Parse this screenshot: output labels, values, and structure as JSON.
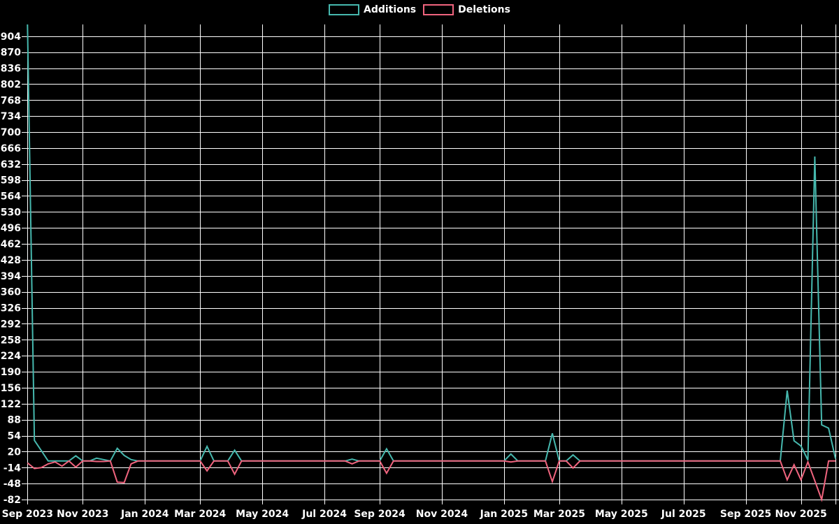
{
  "chart_data": {
    "type": "line",
    "title": "",
    "x_axis": {
      "kind": "time-weekly",
      "start_label": "Sep 2023",
      "end_label": "Nov 2025",
      "weeks_total": 118,
      "ticks": [
        {
          "label": "Sep 2023",
          "week": 0
        },
        {
          "label": "Nov 2023",
          "week": 8
        },
        {
          "label": "Jan 2024",
          "week": 17
        },
        {
          "label": "Mar 2024",
          "week": 25
        },
        {
          "label": "May 2024",
          "week": 34
        },
        {
          "label": "Jul 2024",
          "week": 43
        },
        {
          "label": "Sep 2024",
          "week": 51
        },
        {
          "label": "Nov 2024",
          "week": 60
        },
        {
          "label": "Jan 2025",
          "week": 69
        },
        {
          "label": "Mar 2025",
          "week": 77
        },
        {
          "label": "May 2025",
          "week": 86
        },
        {
          "label": "Jul 2025",
          "week": 95
        },
        {
          "label": "Sep 2025",
          "week": 104
        },
        {
          "label": "Nov 2025",
          "week": 112
        }
      ]
    },
    "y_axis": {
      "min": -82,
      "max": 929,
      "tick_step": 34,
      "ticks": [
        904,
        870,
        836,
        802,
        768,
        734,
        700,
        666,
        632,
        598,
        564,
        530,
        496,
        462,
        428,
        394,
        360,
        326,
        292,
        258,
        224,
        190,
        156,
        122,
        88,
        54,
        20,
        -14,
        -48,
        -82
      ]
    },
    "grid": true,
    "background_color": "#000000",
    "grid_color": "#ffffff",
    "text_color": "#ffffff",
    "legend_position": "top-center",
    "legend": [
      {
        "label": "Additions",
        "color": "#46b8ae"
      },
      {
        "label": "Deletions",
        "color": "#f0647e"
      }
    ],
    "series": [
      {
        "name": "Additions",
        "color": "#46b8ae",
        "values": [
          929,
          44,
          22,
          0,
          0,
          0,
          0,
          11,
          0,
          0,
          6,
          3,
          0,
          27,
          12,
          3,
          0,
          0,
          0,
          0,
          0,
          0,
          0,
          0,
          0,
          0,
          31,
          0,
          0,
          0,
          23,
          0,
          0,
          0,
          0,
          0,
          0,
          0,
          0,
          0,
          0,
          0,
          0,
          0,
          0,
          0,
          0,
          4,
          0,
          0,
          0,
          0,
          26,
          0,
          0,
          0,
          0,
          0,
          0,
          0,
          0,
          0,
          0,
          0,
          0,
          0,
          0,
          0,
          0,
          0,
          15,
          0,
          0,
          0,
          0,
          0,
          59,
          0,
          0,
          13,
          0,
          0,
          0,
          0,
          0,
          0,
          0,
          0,
          0,
          0,
          0,
          0,
          0,
          0,
          0,
          0,
          0,
          0,
          0,
          0,
          0,
          0,
          0,
          0,
          0,
          0,
          0,
          0,
          0,
          0,
          150,
          43,
          32,
          2,
          648,
          77,
          70,
          5
        ]
      },
      {
        "name": "Deletions",
        "color": "#f0647e",
        "values": [
          -4,
          -16,
          -14,
          -6,
          -2,
          -11,
          0,
          -13,
          0,
          0,
          -1,
          -1,
          0,
          -45,
          -46,
          -6,
          0,
          0,
          0,
          0,
          0,
          0,
          0,
          0,
          0,
          0,
          -21,
          0,
          0,
          0,
          -28,
          0,
          0,
          0,
          0,
          0,
          0,
          0,
          0,
          0,
          0,
          0,
          0,
          0,
          0,
          0,
          0,
          -6,
          0,
          0,
          0,
          0,
          -26,
          0,
          0,
          0,
          0,
          0,
          0,
          0,
          0,
          0,
          0,
          0,
          0,
          0,
          0,
          0,
          0,
          0,
          -2,
          0,
          0,
          0,
          0,
          0,
          -44,
          0,
          0,
          -15,
          0,
          0,
          0,
          0,
          0,
          0,
          0,
          0,
          0,
          0,
          0,
          0,
          0,
          0,
          0,
          0,
          0,
          0,
          0,
          0,
          0,
          0,
          0,
          0,
          0,
          0,
          0,
          0,
          0,
          0,
          -40,
          -8,
          -40,
          -2,
          -42,
          -82,
          0,
          0
        ]
      }
    ]
  }
}
